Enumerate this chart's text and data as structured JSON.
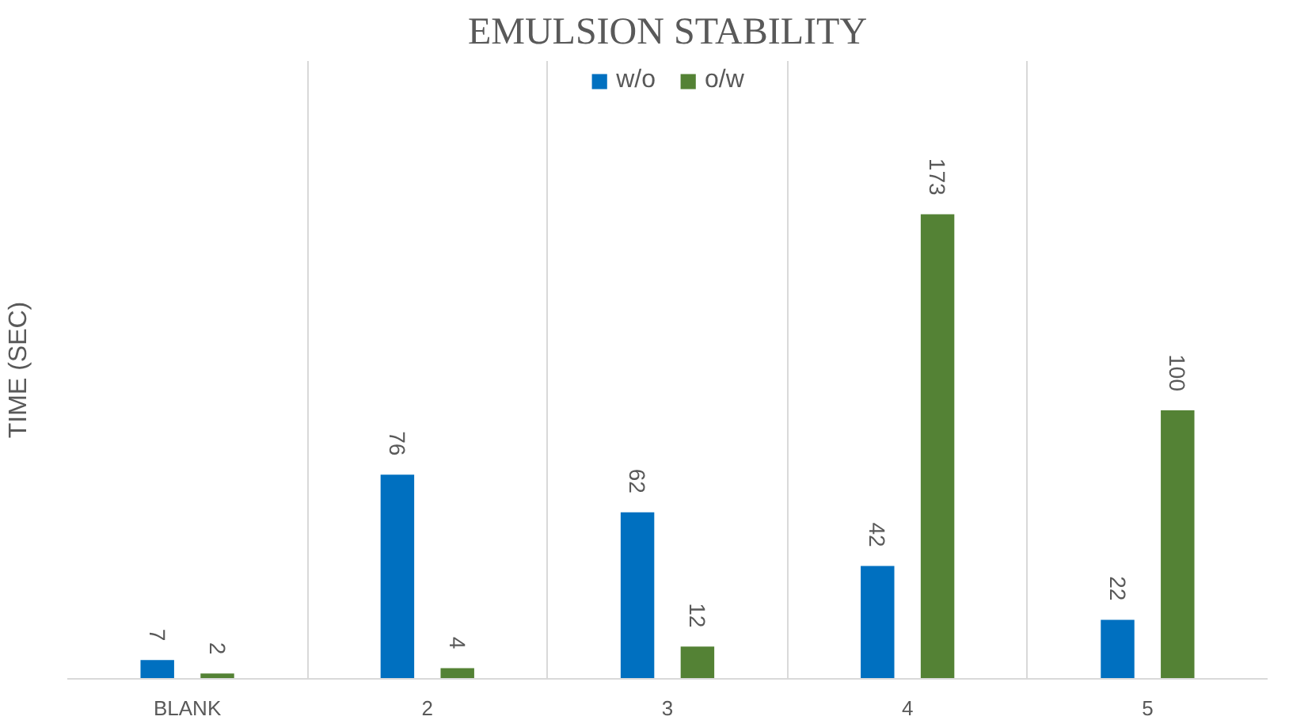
{
  "chart_data": {
    "type": "bar",
    "title": "EMULSION STABILITY",
    "ylabel": "TIME (SEC)",
    "categories": [
      "BLANK",
      "2",
      "3",
      "4",
      "5"
    ],
    "series": [
      {
        "name": "w/o",
        "color": "#0070c0",
        "values": [
          7,
          76,
          62,
          42,
          22
        ]
      },
      {
        "name": "o/w",
        "color": "#548235",
        "values": [
          2,
          4,
          12,
          173,
          100
        ]
      }
    ],
    "data_labels": true,
    "grid": "x",
    "legend": "top"
  }
}
